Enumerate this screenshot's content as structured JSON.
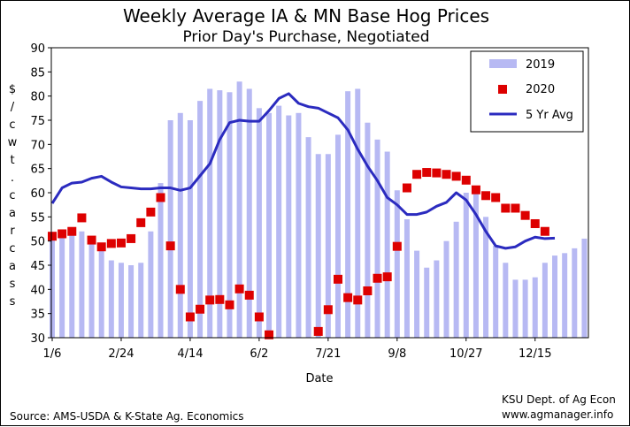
{
  "chart_data": {
    "type": "bar",
    "title": "Weekly Average IA & MN Base Hog Prices",
    "subtitle": "Prior Day's Purchase, Negotiated",
    "xlabel": "Date",
    "ylabel": "$/cwt. carcass",
    "ylim": [
      30,
      90
    ],
    "yticks": [
      30,
      35,
      40,
      45,
      50,
      55,
      60,
      65,
      70,
      75,
      80,
      85,
      90
    ],
    "x_tick_labels": [
      {
        "week": 1,
        "label": "1/6"
      },
      {
        "week": 8,
        "label": "2/24"
      },
      {
        "week": 15,
        "label": "4/14"
      },
      {
        "week": 22,
        "label": "6/2"
      },
      {
        "week": 29,
        "label": "7/21"
      },
      {
        "week": 36,
        "label": "9/8"
      },
      {
        "week": 43,
        "label": "10/27"
      },
      {
        "week": 50,
        "label": "12/15"
      }
    ],
    "grid": false,
    "legend_position": "top-right",
    "series": [
      {
        "name": "2019",
        "kind": "bar",
        "color": "#b7b9f3",
        "values": [
          50.5,
          51.5,
          52.5,
          52.0,
          49.5,
          48.5,
          46.0,
          45.5,
          45.0,
          45.5,
          52.0,
          62.0,
          75.0,
          76.5,
          75.0,
          79.0,
          81.5,
          81.2,
          80.8,
          83.0,
          81.5,
          77.5,
          76.5,
          78.0,
          76.0,
          76.5,
          71.5,
          68.0,
          68.0,
          72.0,
          81.0,
          81.5,
          74.5,
          71.0,
          68.5,
          60.5,
          54.5,
          48.0,
          44.5,
          46.0,
          50.0,
          54.0,
          60.0,
          60.0,
          55.0,
          49.0,
          45.5,
          42.0,
          42.0,
          42.5,
          45.5,
          47.0,
          47.5,
          48.5,
          50.5
        ]
      },
      {
        "name": "2020",
        "kind": "marker",
        "color": "#dd0000",
        "values": [
          51.0,
          51.5,
          52.0,
          54.8,
          50.2,
          48.8,
          49.5,
          49.6,
          50.5,
          53.8,
          56.0,
          59.0,
          49.0,
          40.0,
          34.3,
          35.9,
          37.8,
          37.9,
          36.8,
          40.1,
          38.8,
          34.3,
          30.6,
          null,
          null,
          null,
          null,
          31.3,
          35.8,
          42.1,
          38.3,
          37.8,
          39.7,
          42.3,
          42.6,
          48.9,
          61.0,
          63.8,
          64.2,
          64.1,
          63.8,
          63.4,
          62.6,
          60.6,
          59.4,
          59.0,
          56.8,
          56.8,
          55.3,
          53.6,
          52.0,
          null,
          null,
          null,
          null
        ]
      },
      {
        "name": "5 Yr Avg",
        "kind": "line",
        "color": "#2b2bbf",
        "values": [
          57.8,
          61.0,
          62.0,
          62.2,
          63.0,
          63.4,
          62.2,
          61.2,
          61.0,
          60.8,
          60.8,
          61.0,
          61.0,
          60.5,
          61.0,
          63.5,
          66.0,
          71.0,
          74.5,
          75.0,
          74.8,
          74.8,
          77.0,
          79.5,
          80.5,
          78.5,
          77.8,
          77.5,
          76.5,
          75.5,
          73.0,
          69.0,
          65.5,
          62.5,
          59.0,
          57.5,
          55.5,
          55.5,
          56.0,
          57.2,
          58.0,
          60.0,
          58.5,
          55.5,
          52.0,
          49.0,
          48.5,
          48.8,
          50.0,
          50.8,
          50.5,
          50.6,
          null,
          null,
          null
        ]
      }
    ],
    "annotations": {
      "source": "Source: AMS-USDA & K-State Ag. Economics",
      "credit_line1": "KSU Dept. of Ag Econ",
      "credit_line2": "www.agmanager.info"
    }
  }
}
